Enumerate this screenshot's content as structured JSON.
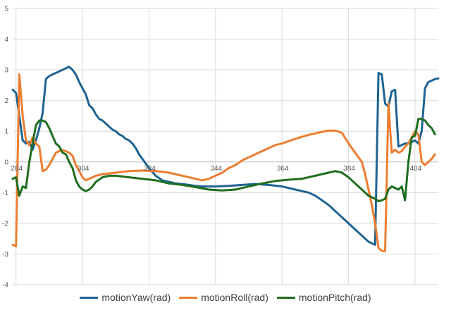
{
  "chart_data": {
    "type": "line",
    "title": "",
    "xlabel": "",
    "ylabel": "",
    "ylim": [
      -4,
      5
    ],
    "xlim": [
      283,
      411
    ],
    "yticks": [
      -4,
      -3,
      -2,
      -1,
      0,
      1,
      2,
      3,
      4,
      5
    ],
    "xticks": [
      284,
      304,
      324,
      344,
      364,
      384,
      404
    ],
    "grid": true,
    "legend_position": "bottom",
    "series": [
      {
        "name": "motionYaw(rad)",
        "color": "#1F6391",
        "points": [
          [
            283,
            2.35
          ],
          [
            284,
            2.25
          ],
          [
            285,
            1.5
          ],
          [
            286,
            0.7
          ],
          [
            287,
            0.6
          ],
          [
            288,
            0.65
          ],
          [
            289,
            0.4
          ],
          [
            290,
            0.7
          ],
          [
            291,
            1.1
          ],
          [
            292,
            1.6
          ],
          [
            293,
            2.7
          ],
          [
            294,
            2.8
          ],
          [
            295,
            2.85
          ],
          [
            296,
            2.9
          ],
          [
            297,
            2.95
          ],
          [
            298,
            3.0
          ],
          [
            299,
            3.05
          ],
          [
            300,
            3.1
          ],
          [
            301,
            3.0
          ],
          [
            302,
            2.85
          ],
          [
            303,
            2.6
          ],
          [
            304,
            2.4
          ],
          [
            305,
            2.2
          ],
          [
            306,
            1.85
          ],
          [
            307,
            1.75
          ],
          [
            308,
            1.55
          ],
          [
            309,
            1.4
          ],
          [
            310,
            1.35
          ],
          [
            311,
            1.25
          ],
          [
            312,
            1.15
          ],
          [
            313,
            1.05
          ],
          [
            314,
            1.0
          ],
          [
            315,
            0.9
          ],
          [
            316,
            0.85
          ],
          [
            317,
            0.75
          ],
          [
            318,
            0.7
          ],
          [
            319,
            0.6
          ],
          [
            320,
            0.45
          ],
          [
            321,
            0.25
          ],
          [
            322,
            0.1
          ],
          [
            324,
            -0.2
          ],
          [
            326,
            -0.45
          ],
          [
            328,
            -0.6
          ],
          [
            330,
            -0.65
          ],
          [
            332,
            -0.7
          ],
          [
            334,
            -0.72
          ],
          [
            336,
            -0.75
          ],
          [
            338,
            -0.78
          ],
          [
            340,
            -0.8
          ],
          [
            344,
            -0.8
          ],
          [
            348,
            -0.78
          ],
          [
            352,
            -0.75
          ],
          [
            356,
            -0.72
          ],
          [
            360,
            -0.75
          ],
          [
            364,
            -0.8
          ],
          [
            368,
            -0.9
          ],
          [
            372,
            -1.0
          ],
          [
            374,
            -1.1
          ],
          [
            376,
            -1.25
          ],
          [
            378,
            -1.4
          ],
          [
            380,
            -1.6
          ],
          [
            382,
            -1.8
          ],
          [
            384,
            -2.0
          ],
          [
            386,
            -2.2
          ],
          [
            388,
            -2.4
          ],
          [
            390,
            -2.6
          ],
          [
            391,
            -2.65
          ],
          [
            392,
            -2.7
          ],
          [
            393,
            2.9
          ],
          [
            394,
            2.85
          ],
          [
            395,
            1.9
          ],
          [
            396,
            1.8
          ],
          [
            397,
            2.3
          ],
          [
            398,
            2.35
          ],
          [
            399,
            0.5
          ],
          [
            400,
            0.55
          ],
          [
            401,
            0.6
          ],
          [
            402,
            0.6
          ],
          [
            403,
            0.65
          ],
          [
            404,
            0.7
          ],
          [
            405,
            0.6
          ],
          [
            406,
            1.0
          ],
          [
            407,
            2.4
          ],
          [
            408,
            2.6
          ],
          [
            409,
            2.65
          ],
          [
            410,
            2.7
          ],
          [
            411,
            2.72
          ]
        ]
      },
      {
        "name": "motionRoll(rad)",
        "color": "#ED7D31",
        "points": [
          [
            283,
            -2.7
          ],
          [
            284,
            -2.75
          ],
          [
            285,
            2.85
          ],
          [
            286,
            1.5
          ],
          [
            287,
            0.7
          ],
          [
            288,
            0.55
          ],
          [
            289,
            0.8
          ],
          [
            290,
            0.6
          ],
          [
            291,
            0.5
          ],
          [
            292,
            -0.3
          ],
          [
            293,
            -0.25
          ],
          [
            294,
            -0.1
          ],
          [
            295,
            0.1
          ],
          [
            296,
            0.3
          ],
          [
            297,
            0.35
          ],
          [
            298,
            0.38
          ],
          [
            299,
            0.35
          ],
          [
            300,
            0.3
          ],
          [
            301,
            0.2
          ],
          [
            302,
            -0.1
          ],
          [
            303,
            -0.3
          ],
          [
            304,
            -0.5
          ],
          [
            305,
            -0.6
          ],
          [
            306,
            -0.55
          ],
          [
            307,
            -0.5
          ],
          [
            308,
            -0.45
          ],
          [
            310,
            -0.4
          ],
          [
            314,
            -0.35
          ],
          [
            318,
            -0.3
          ],
          [
            322,
            -0.28
          ],
          [
            326,
            -0.3
          ],
          [
            330,
            -0.35
          ],
          [
            334,
            -0.45
          ],
          [
            338,
            -0.55
          ],
          [
            340,
            -0.6
          ],
          [
            342,
            -0.55
          ],
          [
            344,
            -0.45
          ],
          [
            346,
            -0.35
          ],
          [
            348,
            -0.2
          ],
          [
            350,
            -0.1
          ],
          [
            352,
            0.05
          ],
          [
            354,
            0.15
          ],
          [
            356,
            0.25
          ],
          [
            358,
            0.35
          ],
          [
            360,
            0.45
          ],
          [
            362,
            0.55
          ],
          [
            364,
            0.6
          ],
          [
            366,
            0.68
          ],
          [
            368,
            0.75
          ],
          [
            370,
            0.82
          ],
          [
            372,
            0.88
          ],
          [
            374,
            0.93
          ],
          [
            376,
            0.98
          ],
          [
            378,
            1.02
          ],
          [
            380,
            1.02
          ],
          [
            382,
            0.95
          ],
          [
            384,
            0.6
          ],
          [
            386,
            0.3
          ],
          [
            388,
            0.0
          ],
          [
            389,
            -0.4
          ],
          [
            390,
            -0.9
          ],
          [
            391,
            -1.4
          ],
          [
            392,
            -2.0
          ],
          [
            393,
            -2.8
          ],
          [
            394,
            -2.9
          ],
          [
            395,
            -2.9
          ],
          [
            396,
            1.9
          ],
          [
            397,
            0.3
          ],
          [
            398,
            0.4
          ],
          [
            399,
            0.3
          ],
          [
            400,
            0.35
          ],
          [
            401,
            0.5
          ],
          [
            402,
            0.6
          ],
          [
            403,
            0.8
          ],
          [
            404,
            1.0
          ],
          [
            405,
            0.9
          ],
          [
            406,
            0.0
          ],
          [
            407,
            -0.1
          ],
          [
            408,
            0.0
          ],
          [
            409,
            0.1
          ],
          [
            410,
            0.25
          ]
        ]
      },
      {
        "name": "motionPitch(rad)",
        "color": "#1F6E1F",
        "points": [
          [
            283,
            -0.55
          ],
          [
            284,
            -0.5
          ],
          [
            285,
            -1.1
          ],
          [
            286,
            -0.8
          ],
          [
            287,
            -0.85
          ],
          [
            288,
            0.0
          ],
          [
            289,
            0.6
          ],
          [
            290,
            1.2
          ],
          [
            291,
            1.35
          ],
          [
            292,
            1.35
          ],
          [
            293,
            1.3
          ],
          [
            294,
            1.1
          ],
          [
            295,
            0.85
          ],
          [
            296,
            0.6
          ],
          [
            297,
            0.5
          ],
          [
            298,
            0.3
          ],
          [
            299,
            0.25
          ],
          [
            300,
            0.0
          ],
          [
            301,
            -0.2
          ],
          [
            302,
            -0.6
          ],
          [
            303,
            -0.8
          ],
          [
            304,
            -0.9
          ],
          [
            305,
            -0.95
          ],
          [
            306,
            -0.9
          ],
          [
            307,
            -0.8
          ],
          [
            308,
            -0.65
          ],
          [
            310,
            -0.5
          ],
          [
            312,
            -0.45
          ],
          [
            314,
            -0.45
          ],
          [
            318,
            -0.5
          ],
          [
            322,
            -0.55
          ],
          [
            326,
            -0.6
          ],
          [
            330,
            -0.7
          ],
          [
            334,
            -0.75
          ],
          [
            338,
            -0.82
          ],
          [
            342,
            -0.9
          ],
          [
            346,
            -0.93
          ],
          [
            350,
            -0.9
          ],
          [
            354,
            -0.8
          ],
          [
            358,
            -0.7
          ],
          [
            362,
            -0.62
          ],
          [
            366,
            -0.58
          ],
          [
            370,
            -0.55
          ],
          [
            374,
            -0.45
          ],
          [
            378,
            -0.35
          ],
          [
            380,
            -0.3
          ],
          [
            382,
            -0.35
          ],
          [
            384,
            -0.5
          ],
          [
            386,
            -0.7
          ],
          [
            388,
            -0.9
          ],
          [
            390,
            -1.1
          ],
          [
            392,
            -1.2
          ],
          [
            393,
            -1.28
          ],
          [
            394,
            -1.25
          ],
          [
            395,
            -1.2
          ],
          [
            396,
            -0.9
          ],
          [
            397,
            -0.8
          ],
          [
            398,
            -0.85
          ],
          [
            399,
            -0.9
          ],
          [
            400,
            -0.8
          ],
          [
            401,
            -1.25
          ],
          [
            402,
            0.0
          ],
          [
            403,
            0.8
          ],
          [
            404,
            0.85
          ],
          [
            405,
            1.4
          ],
          [
            406,
            1.4
          ],
          [
            407,
            1.35
          ],
          [
            408,
            1.2
          ],
          [
            409,
            1.1
          ],
          [
            410,
            0.9
          ]
        ]
      }
    ]
  }
}
